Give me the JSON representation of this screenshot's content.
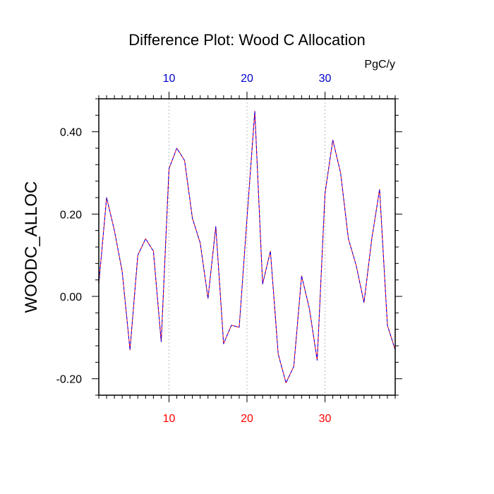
{
  "chart_data": {
    "type": "line",
    "title": "Difference Plot: Wood C Allocation",
    "units_label": "PgC/y",
    "ylabel": "WOODC_ALLOC",
    "xlabel": "",
    "xlim": [
      1,
      39
    ],
    "ylim": [
      -0.24,
      0.48
    ],
    "yticks": [
      -0.2,
      0.0,
      0.2,
      0.4
    ],
    "ytick_labels": [
      "-0.20",
      "0.00",
      "0.20",
      "0.40"
    ],
    "xticks_bottom": [
      10,
      20,
      30
    ],
    "xtick_labels_bottom": [
      "10",
      "20",
      "30"
    ],
    "xticks_top": [
      10,
      20,
      30
    ],
    "xtick_labels_top": [
      "10",
      "20",
      "30"
    ],
    "grid": "vertical dotted at x ticks",
    "colors": {
      "bottom_tick_labels": "#ff0000",
      "top_tick_labels": "#0000cc",
      "series_a": "#ff0000",
      "series_b": "#0000ff"
    },
    "x": [
      1,
      2,
      3,
      4,
      5,
      6,
      7,
      8,
      9,
      10,
      11,
      12,
      13,
      14,
      15,
      16,
      17,
      18,
      19,
      20,
      21,
      22,
      23,
      24,
      25,
      26,
      27,
      28,
      29,
      30,
      31,
      32,
      33,
      34,
      35,
      36,
      37,
      38,
      39
    ],
    "series": [
      {
        "values": [
          0.03,
          0.24,
          0.16,
          0.06,
          -0.13,
          0.1,
          0.14,
          0.11,
          -0.11,
          0.31,
          0.36,
          0.33,
          0.19,
          0.13,
          -0.005,
          0.17,
          -0.115,
          -0.07,
          -0.075,
          0.19,
          0.45,
          0.03,
          0.11,
          -0.14,
          -0.21,
          -0.17,
          0.05,
          -0.03,
          -0.155,
          0.25,
          0.38,
          0.3,
          0.14,
          0.075,
          -0.015,
          0.14,
          0.26,
          -0.07,
          -0.13
        ]
      },
      {
        "values": [
          0.03,
          0.24,
          0.16,
          0.06,
          -0.13,
          0.1,
          0.14,
          0.11,
          -0.11,
          0.31,
          0.36,
          0.33,
          0.19,
          0.13,
          -0.005,
          0.17,
          -0.115,
          -0.07,
          -0.075,
          0.19,
          0.45,
          0.03,
          0.11,
          -0.14,
          -0.21,
          -0.17,
          0.05,
          -0.03,
          -0.155,
          0.25,
          0.38,
          0.3,
          0.14,
          0.075,
          -0.015,
          0.14,
          0.26,
          -0.07,
          -0.13
        ]
      }
    ]
  }
}
